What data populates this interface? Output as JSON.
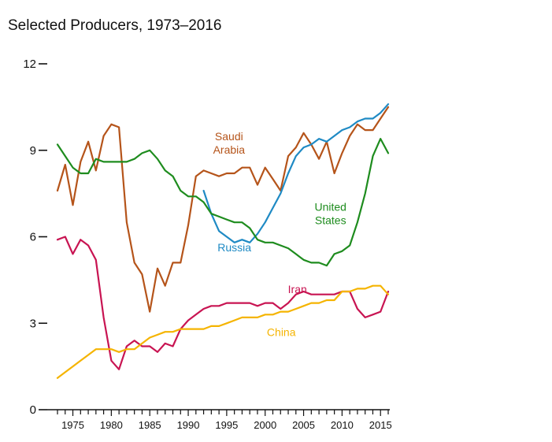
{
  "chart_data": {
    "type": "line",
    "title": "Selected Producers, 1973–2016",
    "xlabel": "",
    "ylabel": "",
    "xlim": [
      1973,
      2016
    ],
    "ylim": [
      0,
      12
    ],
    "y_ticks": [
      0,
      3,
      6,
      9,
      12
    ],
    "x_tick_labels": [
      1975,
      1980,
      1985,
      1990,
      1995,
      2000,
      2005,
      2010,
      2015
    ],
    "grid": false,
    "legend": "direct labels on lines",
    "series": [
      {
        "name": "Saudi Arabia",
        "label_lines": [
          "Saudi",
          "Arabia"
        ],
        "color": "#b5541a",
        "x": [
          1973,
          1974,
          1975,
          1976,
          1977,
          1978,
          1979,
          1980,
          1981,
          1982,
          1983,
          1984,
          1985,
          1986,
          1987,
          1988,
          1989,
          1990,
          1991,
          1992,
          1993,
          1994,
          1995,
          1996,
          1997,
          1998,
          1999,
          2000,
          2001,
          2002,
          2003,
          2004,
          2005,
          2006,
          2007,
          2008,
          2009,
          2010,
          2011,
          2012,
          2013,
          2014,
          2015,
          2016
        ],
        "y": [
          7.6,
          8.5,
          7.1,
          8.6,
          9.3,
          8.3,
          9.5,
          9.9,
          9.8,
          6.5,
          5.1,
          4.7,
          3.4,
          4.9,
          4.3,
          5.1,
          5.1,
          6.4,
          8.1,
          8.3,
          8.2,
          8.1,
          8.2,
          8.2,
          8.4,
          8.4,
          7.8,
          8.4,
          8.0,
          7.6,
          8.8,
          9.1,
          9.6,
          9.2,
          8.7,
          9.3,
          8.2,
          8.9,
          9.5,
          9.9,
          9.7,
          9.7,
          10.1,
          10.5
        ]
      },
      {
        "name": "Russia",
        "label_lines": [
          "Russia"
        ],
        "color": "#1f8ac4",
        "x": [
          1992,
          1993,
          1994,
          1995,
          1996,
          1997,
          1998,
          1999,
          2000,
          2001,
          2002,
          2003,
          2004,
          2005,
          2006,
          2007,
          2008,
          2009,
          2010,
          2011,
          2012,
          2013,
          2014,
          2015,
          2016
        ],
        "y": [
          7.6,
          6.8,
          6.2,
          6.0,
          5.8,
          5.9,
          5.8,
          6.1,
          6.5,
          7.0,
          7.5,
          8.2,
          8.8,
          9.1,
          9.2,
          9.4,
          9.3,
          9.5,
          9.7,
          9.8,
          10.0,
          10.1,
          10.1,
          10.3,
          10.6
        ]
      },
      {
        "name": "United States",
        "label_lines": [
          "United",
          "States"
        ],
        "color": "#1e8c1e",
        "x": [
          1973,
          1974,
          1975,
          1976,
          1977,
          1978,
          1979,
          1980,
          1981,
          1982,
          1983,
          1984,
          1985,
          1986,
          1987,
          1988,
          1989,
          1990,
          1991,
          1992,
          1993,
          1994,
          1995,
          1996,
          1997,
          1998,
          1999,
          2000,
          2001,
          2002,
          2003,
          2004,
          2005,
          2006,
          2007,
          2008,
          2009,
          2010,
          2011,
          2012,
          2013,
          2014,
          2015,
          2016
        ],
        "y": [
          9.2,
          8.8,
          8.4,
          8.2,
          8.2,
          8.7,
          8.6,
          8.6,
          8.6,
          8.6,
          8.7,
          8.9,
          9.0,
          8.7,
          8.3,
          8.1,
          7.6,
          7.4,
          7.4,
          7.2,
          6.8,
          6.7,
          6.6,
          6.5,
          6.5,
          6.3,
          5.9,
          5.8,
          5.8,
          5.7,
          5.6,
          5.4,
          5.2,
          5.1,
          5.1,
          5.0,
          5.4,
          5.5,
          5.7,
          6.5,
          7.5,
          8.8,
          9.4,
          8.9
        ]
      },
      {
        "name": "Iran",
        "label_lines": [
          "Iran"
        ],
        "color": "#c81452",
        "x": [
          1973,
          1974,
          1975,
          1976,
          1977,
          1978,
          1979,
          1980,
          1981,
          1982,
          1983,
          1984,
          1985,
          1986,
          1987,
          1988,
          1989,
          1990,
          1991,
          1992,
          1993,
          1994,
          1995,
          1996,
          1997,
          1998,
          1999,
          2000,
          2001,
          2002,
          2003,
          2004,
          2005,
          2006,
          2007,
          2008,
          2009,
          2010,
          2011,
          2012,
          2013,
          2014,
          2015,
          2016
        ],
        "y": [
          5.9,
          6.0,
          5.4,
          5.9,
          5.7,
          5.2,
          3.2,
          1.7,
          1.4,
          2.2,
          2.4,
          2.2,
          2.2,
          2.0,
          2.3,
          2.2,
          2.8,
          3.1,
          3.3,
          3.5,
          3.6,
          3.6,
          3.7,
          3.7,
          3.7,
          3.7,
          3.6,
          3.7,
          3.7,
          3.5,
          3.7,
          4.0,
          4.1,
          4.0,
          4.0,
          4.0,
          4.0,
          4.1,
          4.1,
          3.5,
          3.2,
          3.3,
          3.4,
          4.1
        ]
      },
      {
        "name": "China",
        "label_lines": [
          "China"
        ],
        "color": "#f5b400",
        "x": [
          1973,
          1974,
          1975,
          1976,
          1977,
          1978,
          1979,
          1980,
          1981,
          1982,
          1983,
          1984,
          1985,
          1986,
          1987,
          1988,
          1989,
          1990,
          1991,
          1992,
          1993,
          1994,
          1995,
          1996,
          1997,
          1998,
          1999,
          2000,
          2001,
          2002,
          2003,
          2004,
          2005,
          2006,
          2007,
          2008,
          2009,
          2010,
          2011,
          2012,
          2013,
          2014,
          2015,
          2016
        ],
        "y": [
          1.1,
          1.3,
          1.5,
          1.7,
          1.9,
          2.1,
          2.1,
          2.1,
          2.0,
          2.1,
          2.1,
          2.3,
          2.5,
          2.6,
          2.7,
          2.7,
          2.8,
          2.8,
          2.8,
          2.8,
          2.9,
          2.9,
          3.0,
          3.1,
          3.2,
          3.2,
          3.2,
          3.3,
          3.3,
          3.4,
          3.4,
          3.5,
          3.6,
          3.7,
          3.7,
          3.8,
          3.8,
          4.1,
          4.1,
          4.2,
          4.2,
          4.3,
          4.3,
          4.0
        ]
      }
    ]
  }
}
